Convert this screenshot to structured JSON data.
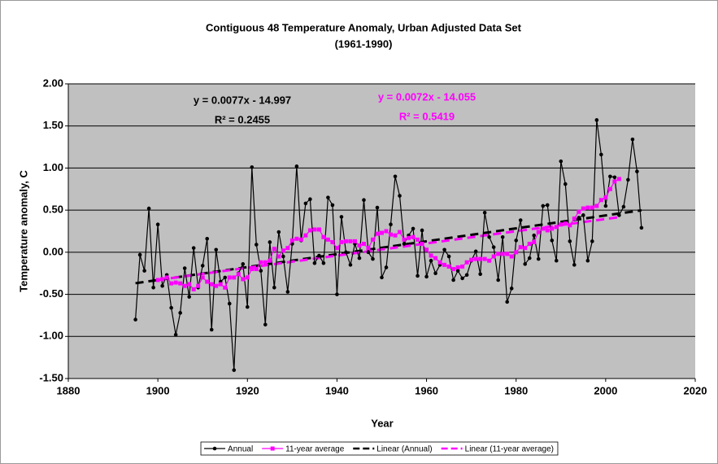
{
  "chart_data": {
    "type": "line",
    "title": "Contiguous 48 Temperature Anomaly, Urban Adjusted Data Set",
    "subtitle": "(1961-1990)",
    "x_label": "Year",
    "y_label": "Temperature anomaly, C",
    "xlim": [
      1880,
      2020
    ],
    "xticks": [
      1880,
      1900,
      1920,
      1940,
      1960,
      1980,
      2000,
      2020
    ],
    "ylim": [
      -1.5,
      2.0
    ],
    "yticks": [
      {
        "value": -1.5,
        "label": "-1.50"
      },
      {
        "value": -1.0,
        "label": "-1.00"
      },
      {
        "value": -0.5,
        "label": "-0.50"
      },
      {
        "value": 0,
        "label": "0.00"
      },
      {
        "value": 0.5,
        "label": "0.50"
      },
      {
        "value": 1.0,
        "label": "1.00"
      },
      {
        "value": 1.5,
        "label": "1.50"
      },
      {
        "value": 2.0,
        "label": "2.00"
      }
    ],
    "grid": true,
    "legend": "bottom",
    "x": [
      1895,
      1896,
      1897,
      1898,
      1899,
      1900,
      1901,
      1902,
      1903,
      1904,
      1905,
      1906,
      1907,
      1908,
      1909,
      1910,
      1911,
      1912,
      1913,
      1914,
      1915,
      1916,
      1917,
      1918,
      1919,
      1920,
      1921,
      1922,
      1923,
      1924,
      1925,
      1926,
      1927,
      1928,
      1929,
      1930,
      1931,
      1932,
      1933,
      1934,
      1935,
      1936,
      1937,
      1938,
      1939,
      1940,
      1941,
      1942,
      1943,
      1944,
      1945,
      1946,
      1947,
      1948,
      1949,
      1950,
      1951,
      1952,
      1953,
      1954,
      1955,
      1956,
      1957,
      1958,
      1959,
      1960,
      1961,
      1962,
      1963,
      1964,
      1965,
      1966,
      1967,
      1968,
      1969,
      1970,
      1971,
      1972,
      1973,
      1974,
      1975,
      1976,
      1977,
      1978,
      1979,
      1980,
      1981,
      1982,
      1983,
      1984,
      1985,
      1986,
      1987,
      1988,
      1989,
      1990,
      1991,
      1992,
      1993,
      1994,
      1995,
      1996,
      1997,
      1998,
      1999,
      2000,
      2001,
      2002,
      2003,
      2004,
      2005,
      2006,
      2007,
      2008
    ],
    "series": [
      {
        "name": "Annual",
        "color": "#000000",
        "marker": "circle",
        "values": [
          -0.8,
          -0.03,
          -0.22,
          0.52,
          -0.42,
          0.33,
          -0.4,
          -0.27,
          -0.66,
          -0.98,
          -0.72,
          -0.19,
          -0.53,
          0.05,
          -0.42,
          -0.16,
          0.16,
          -0.92,
          0.03,
          -0.35,
          -0.3,
          -0.61,
          -1.4,
          -0.25,
          -0.14,
          -0.65,
          1.01,
          0.09,
          -0.22,
          -0.86,
          0.12,
          -0.42,
          0.24,
          -0.05,
          -0.47,
          0.1,
          1.02,
          0.14,
          0.58,
          0.63,
          -0.13,
          -0.04,
          -0.13,
          0.65,
          0.56,
          -0.5,
          0.42,
          0.0,
          -0.15,
          0.1,
          -0.07,
          0.62,
          0.0,
          -0.08,
          0.53,
          -0.3,
          -0.18,
          0.33,
          0.9,
          0.67,
          0.1,
          0.2,
          0.28,
          -0.28,
          0.26,
          -0.29,
          -0.1,
          -0.25,
          -0.15,
          0.03,
          -0.05,
          -0.33,
          -0.22,
          -0.31,
          -0.27,
          -0.1,
          0.01,
          -0.26,
          0.47,
          0.18,
          0.06,
          -0.33,
          0.18,
          -0.59,
          -0.43,
          0.14,
          0.38,
          -0.14,
          -0.07,
          0.2,
          -0.08,
          0.55,
          0.56,
          0.14,
          -0.1,
          1.08,
          0.81,
          0.13,
          -0.15,
          0.41,
          0.44,
          -0.1,
          0.13,
          1.57,
          1.16,
          0.55,
          0.9,
          0.89,
          0.44,
          0.54,
          0.86,
          1.34,
          0.96,
          0.29
        ],
        "trendline": {
          "name": "Linear (Annual)",
          "color": "#000000",
          "equation": "y = 0.0077x - 14.997",
          "r2": "R² = 0.2455"
        }
      },
      {
        "name": "11-year average",
        "color": "#ff00ff",
        "marker": "square",
        "values": [
          null,
          null,
          null,
          null,
          null,
          -0.33,
          -0.32,
          -0.3,
          -0.37,
          -0.36,
          -0.37,
          -0.4,
          -0.38,
          -0.44,
          -0.4,
          -0.3,
          -0.35,
          -0.38,
          -0.4,
          -0.38,
          -0.42,
          -0.3,
          -0.3,
          -0.26,
          -0.32,
          -0.3,
          -0.2,
          -0.2,
          -0.12,
          -0.12,
          -0.1,
          0.04,
          -0.05,
          0.02,
          0.05,
          0.14,
          0.16,
          0.15,
          0.2,
          0.26,
          0.27,
          0.27,
          0.18,
          0.15,
          0.12,
          0.05,
          0.12,
          0.13,
          0.13,
          0.13,
          0.08,
          0.1,
          0.05,
          0.15,
          0.22,
          0.23,
          0.25,
          0.21,
          0.2,
          0.24,
          0.15,
          0.17,
          0.18,
          0.15,
          0.1,
          0.03,
          -0.04,
          -0.07,
          -0.12,
          -0.15,
          -0.17,
          -0.2,
          -0.18,
          -0.17,
          -0.12,
          -0.09,
          -0.08,
          -0.08,
          -0.08,
          -0.1,
          -0.05,
          -0.02,
          -0.02,
          -0.02,
          -0.05,
          0.0,
          0.06,
          0.05,
          0.1,
          0.12,
          0.24,
          0.28,
          0.26,
          0.28,
          0.3,
          0.33,
          0.34,
          0.32,
          0.4,
          0.48,
          0.52,
          0.53,
          0.53,
          0.55,
          0.62,
          0.65,
          0.75,
          0.84,
          0.87,
          null,
          null,
          null,
          null,
          null
        ],
        "trendline": {
          "name": "Linear (11-year average)",
          "color": "#ff00ff",
          "equation": "y = 0.0072x - 14.055",
          "r2": "R² = 0.5419"
        }
      }
    ]
  }
}
